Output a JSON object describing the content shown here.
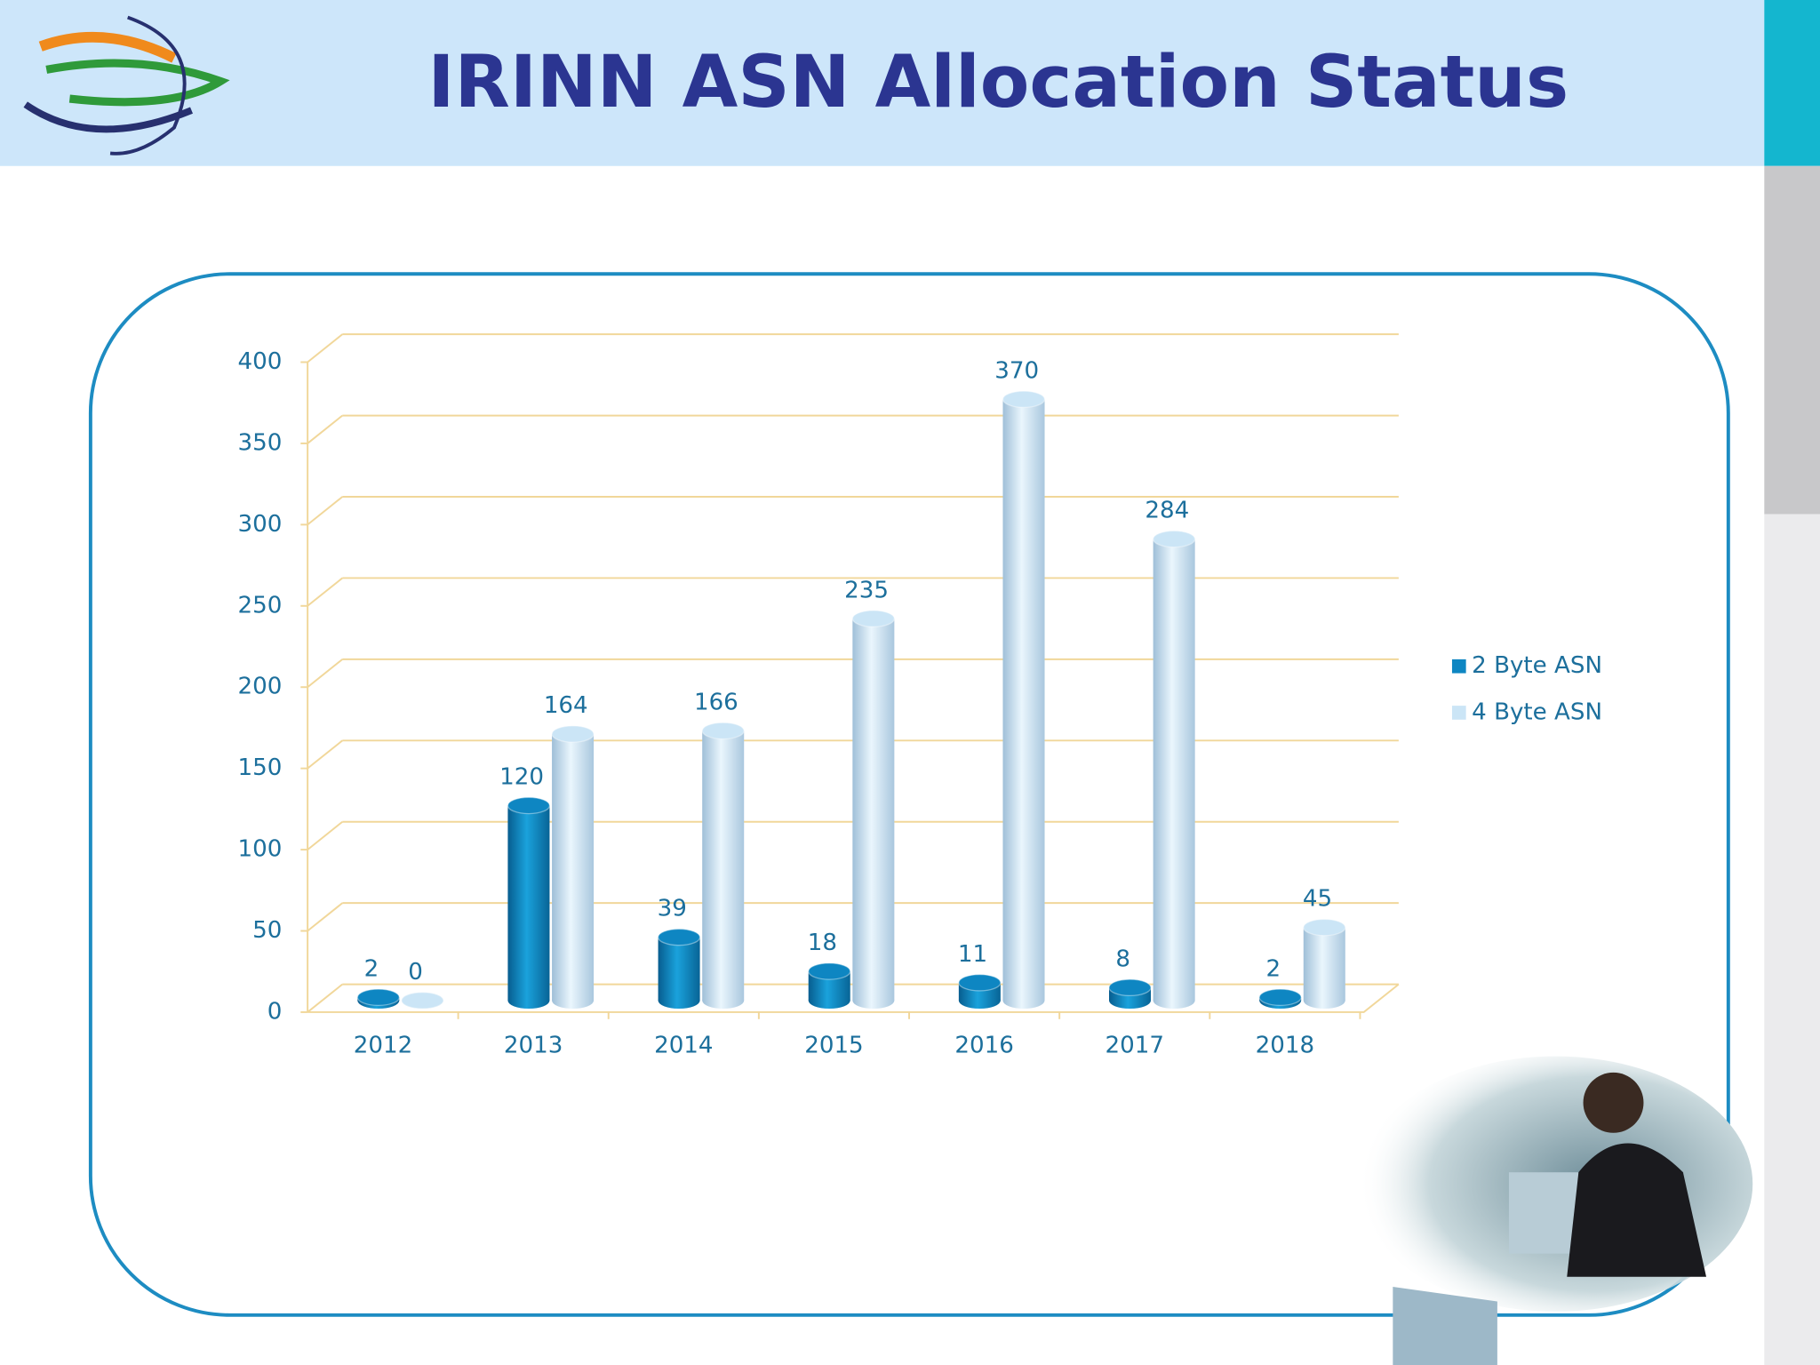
{
  "chart_data": {
    "type": "bar",
    "title": "IRINN ASN Allocation Status",
    "categories": [
      "2012",
      "2013",
      "2014",
      "2015",
      "2016",
      "2017",
      "2018"
    ],
    "series": [
      {
        "name": "2 Byte ASN",
        "color": "#0e86c2",
        "values": [
          2,
          120,
          39,
          18,
          11,
          8,
          2
        ]
      },
      {
        "name": "4 Byte ASN",
        "color": "#cbe5f6",
        "values": [
          0,
          164,
          166,
          235,
          370,
          284,
          45
        ]
      }
    ],
    "ylim": [
      0,
      400
    ],
    "yticks": [
      0,
      50,
      100,
      150,
      200,
      250,
      300,
      350,
      400
    ],
    "grid": true,
    "legend": "right"
  }
}
